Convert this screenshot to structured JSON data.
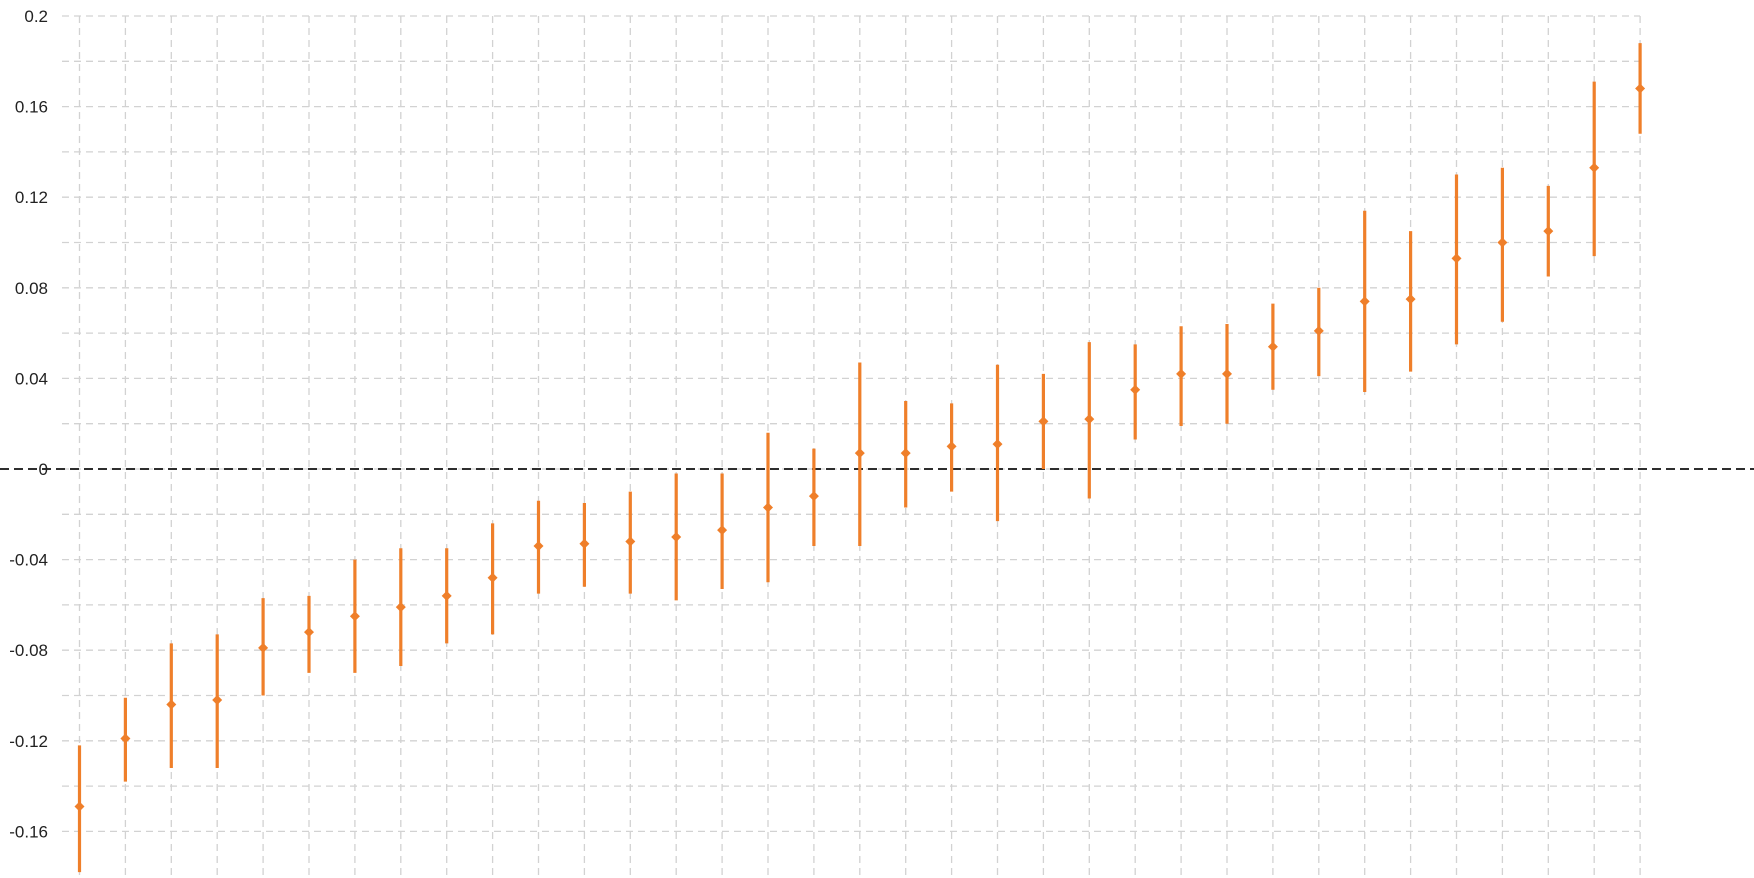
{
  "chart_data": {
    "type": "scatter",
    "title": "",
    "xlabel": "",
    "ylabel": "",
    "x_tick_labels": [],
    "ylim": [
      -0.178,
      0.2
    ],
    "ytick_labels": [
      "0.2",
      "0.16",
      "0.12",
      "0.08",
      "0.04",
      "0",
      "-0.04",
      "-0.08",
      "-0.12",
      "-0.16"
    ],
    "yticks": [
      0.2,
      0.16,
      0.12,
      0.08,
      0.04,
      0,
      -0.04,
      -0.08,
      -0.12,
      -0.16
    ],
    "minor_yticks": [
      0.18,
      0.14,
      0.1,
      0.06,
      0.02,
      -0.02,
      -0.06,
      -0.1,
      -0.14
    ],
    "reference_line_y": 0,
    "grid": true,
    "legend": "none",
    "point_count": 35,
    "point_color": "#ef7f2a",
    "grid_color": "#d2d2d2",
    "reference_line_color": "#111111",
    "series": [
      {
        "estimates": [
          -0.149,
          -0.119,
          -0.104,
          -0.102,
          -0.079,
          -0.072,
          -0.065,
          -0.061,
          -0.056,
          -0.048,
          -0.034,
          -0.033,
          -0.032,
          -0.03,
          -0.027,
          -0.017,
          -0.012,
          0.007,
          0.007,
          0.01,
          0.011,
          0.021,
          0.022,
          0.035,
          0.042,
          0.042,
          0.054,
          0.061,
          0.074,
          0.075,
          0.093,
          0.1,
          0.105,
          0.133,
          0.168
        ],
        "lower": [
          -0.178,
          -0.138,
          -0.132,
          -0.132,
          -0.1,
          -0.09,
          -0.09,
          -0.087,
          -0.077,
          -0.073,
          -0.055,
          -0.052,
          -0.055,
          -0.058,
          -0.053,
          -0.05,
          -0.034,
          -0.034,
          -0.017,
          -0.01,
          -0.023,
          0.0,
          -0.013,
          0.013,
          0.019,
          0.02,
          0.035,
          0.041,
          0.034,
          0.043,
          0.055,
          0.065,
          0.085,
          0.094,
          0.148
        ],
        "upper": [
          -0.122,
          -0.101,
          -0.077,
          -0.073,
          -0.057,
          -0.056,
          -0.04,
          -0.035,
          -0.035,
          -0.024,
          -0.014,
          -0.015,
          -0.01,
          -0.002,
          -0.002,
          0.016,
          0.009,
          0.047,
          0.03,
          0.029,
          0.046,
          0.042,
          0.056,
          0.055,
          0.063,
          0.064,
          0.073,
          0.08,
          0.114,
          0.105,
          0.13,
          0.133,
          0.125,
          0.171,
          0.188
        ]
      }
    ]
  }
}
